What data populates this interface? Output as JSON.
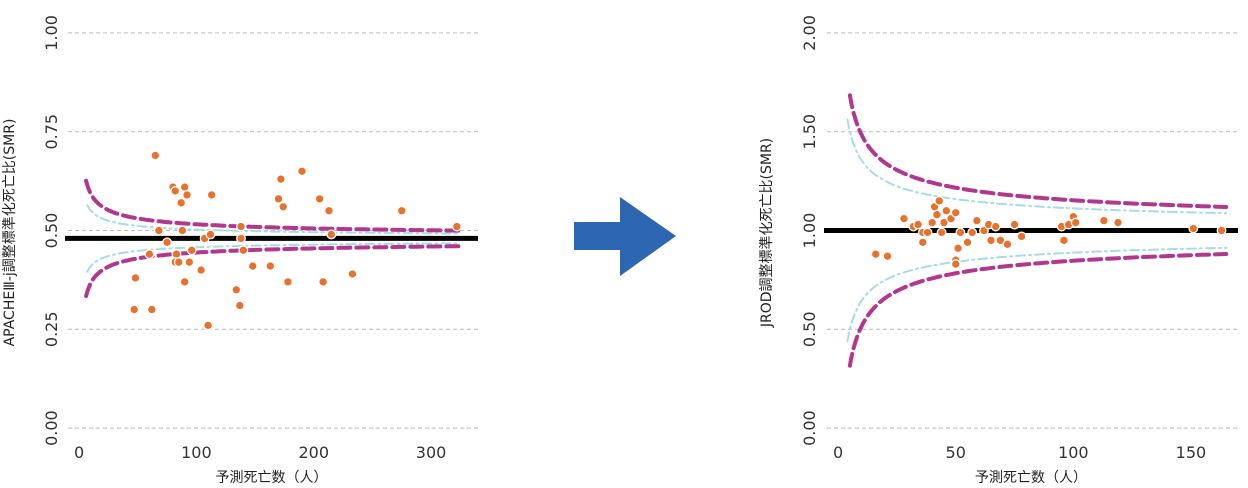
{
  "colors": {
    "point": "#E8722C",
    "limit_outer": "#B2378E",
    "limit_inner": "#A6DCE8",
    "reference": "#000000",
    "arrow": "#2E67B1"
  },
  "chart_data": [
    {
      "type": "scatter",
      "subtype": "funnel-plot",
      "title": "",
      "xlabel": "予測死亡数（人）",
      "ylabel": "APACHEⅢ-j調整標準化死亡比(SMR)",
      "xlim": [
        -12,
        340
      ],
      "ylim": [
        -0.02,
        1.02
      ],
      "xticks": [
        0,
        100,
        200,
        300
      ],
      "xtick_labels": [
        "0",
        "100",
        "200",
        "300"
      ],
      "yticks": [
        0.0,
        0.25,
        0.5,
        0.75,
        1.0
      ],
      "ytick_labels": [
        "0.00",
        "0.25",
        "0.50",
        "0.75",
        "1.00"
      ],
      "grid": "horizontal dashed",
      "reference_line": 0.48,
      "limit_outer": {
        "x_start": 6,
        "x_end": 325,
        "k": 0.12
      },
      "limit_inner": {
        "x_start": 7,
        "x_end": 325,
        "k": 0.075
      },
      "points": [
        {
          "x": 65,
          "y": 0.69
        },
        {
          "x": 80,
          "y": 0.61
        },
        {
          "x": 82,
          "y": 0.6
        },
        {
          "x": 90,
          "y": 0.61
        },
        {
          "x": 92,
          "y": 0.59
        },
        {
          "x": 87,
          "y": 0.57
        },
        {
          "x": 113,
          "y": 0.59
        },
        {
          "x": 172,
          "y": 0.63
        },
        {
          "x": 190,
          "y": 0.65
        },
        {
          "x": 170,
          "y": 0.58
        },
        {
          "x": 174,
          "y": 0.56
        },
        {
          "x": 205,
          "y": 0.58
        },
        {
          "x": 213,
          "y": 0.55
        },
        {
          "x": 275,
          "y": 0.55
        },
        {
          "x": 68,
          "y": 0.5
        },
        {
          "x": 88,
          "y": 0.5
        },
        {
          "x": 138,
          "y": 0.51
        },
        {
          "x": 322,
          "y": 0.51
        },
        {
          "x": 75,
          "y": 0.47
        },
        {
          "x": 83,
          "y": 0.44
        },
        {
          "x": 96,
          "y": 0.45
        },
        {
          "x": 107,
          "y": 0.48
        },
        {
          "x": 112,
          "y": 0.49
        },
        {
          "x": 138,
          "y": 0.48
        },
        {
          "x": 140,
          "y": 0.45
        },
        {
          "x": 82,
          "y": 0.42
        },
        {
          "x": 85,
          "y": 0.42
        },
        {
          "x": 94,
          "y": 0.42
        },
        {
          "x": 104,
          "y": 0.4
        },
        {
          "x": 148,
          "y": 0.41
        },
        {
          "x": 163,
          "y": 0.41
        },
        {
          "x": 48,
          "y": 0.38
        },
        {
          "x": 60,
          "y": 0.44
        },
        {
          "x": 90,
          "y": 0.37
        },
        {
          "x": 178,
          "y": 0.37
        },
        {
          "x": 208,
          "y": 0.37
        },
        {
          "x": 233,
          "y": 0.39
        },
        {
          "x": 134,
          "y": 0.35
        },
        {
          "x": 137,
          "y": 0.31
        },
        {
          "x": 47,
          "y": 0.3
        },
        {
          "x": 62,
          "y": 0.3
        },
        {
          "x": 110,
          "y": 0.26
        },
        {
          "x": 215,
          "y": 0.49
        }
      ]
    },
    {
      "type": "scatter",
      "subtype": "funnel-plot",
      "title": "",
      "xlabel": "予測死亡数（人）",
      "ylabel": "JROD調整標準化死亡比(SMR)",
      "xlim": [
        -6,
        170
      ],
      "ylim": [
        -0.04,
        2.04
      ],
      "xticks": [
        0,
        50,
        100,
        150
      ],
      "xtick_labels": [
        "0",
        "50",
        "100",
        "150"
      ],
      "yticks": [
        0.0,
        0.5,
        1.0,
        1.5,
        2.0
      ],
      "ytick_labels": [
        "0.00",
        "0.50",
        "1.00",
        "1.50",
        "2.00"
      ],
      "grid": "horizontal dashed",
      "reference_line": 1.0,
      "limit_outer": {
        "x_start": 5,
        "x_end": 165,
        "k": 0.45
      },
      "limit_inner": {
        "x_start": 4,
        "x_end": 165,
        "k": 0.33
      },
      "points": [
        {
          "x": 16,
          "y": 0.88
        },
        {
          "x": 21,
          "y": 0.87
        },
        {
          "x": 28,
          "y": 1.06
        },
        {
          "x": 32,
          "y": 1.02
        },
        {
          "x": 34,
          "y": 1.03
        },
        {
          "x": 36,
          "y": 0.99
        },
        {
          "x": 36,
          "y": 0.94
        },
        {
          "x": 38,
          "y": 0.99
        },
        {
          "x": 40,
          "y": 1.04
        },
        {
          "x": 41,
          "y": 1.12
        },
        {
          "x": 42,
          "y": 1.08
        },
        {
          "x": 43,
          "y": 1.15
        },
        {
          "x": 44,
          "y": 0.99
        },
        {
          "x": 45,
          "y": 1.04
        },
        {
          "x": 46,
          "y": 1.1
        },
        {
          "x": 48,
          "y": 1.06
        },
        {
          "x": 50,
          "y": 1.09
        },
        {
          "x": 51,
          "y": 0.91
        },
        {
          "x": 50,
          "y": 0.85
        },
        {
          "x": 50,
          "y": 0.83
        },
        {
          "x": 52,
          "y": 0.99
        },
        {
          "x": 55,
          "y": 0.94
        },
        {
          "x": 57,
          "y": 0.99
        },
        {
          "x": 59,
          "y": 1.05
        },
        {
          "x": 62,
          "y": 1.0
        },
        {
          "x": 64,
          "y": 1.03
        },
        {
          "x": 65,
          "y": 0.95
        },
        {
          "x": 67,
          "y": 1.02
        },
        {
          "x": 69,
          "y": 0.95
        },
        {
          "x": 72,
          "y": 0.93
        },
        {
          "x": 75,
          "y": 1.03
        },
        {
          "x": 78,
          "y": 0.97
        },
        {
          "x": 95,
          "y": 1.02
        },
        {
          "x": 96,
          "y": 0.95
        },
        {
          "x": 98,
          "y": 1.03
        },
        {
          "x": 100,
          "y": 1.07
        },
        {
          "x": 101,
          "y": 1.04
        },
        {
          "x": 113,
          "y": 1.05
        },
        {
          "x": 119,
          "y": 1.04
        },
        {
          "x": 151,
          "y": 1.01
        },
        {
          "x": 163,
          "y": 1.0
        }
      ]
    }
  ]
}
